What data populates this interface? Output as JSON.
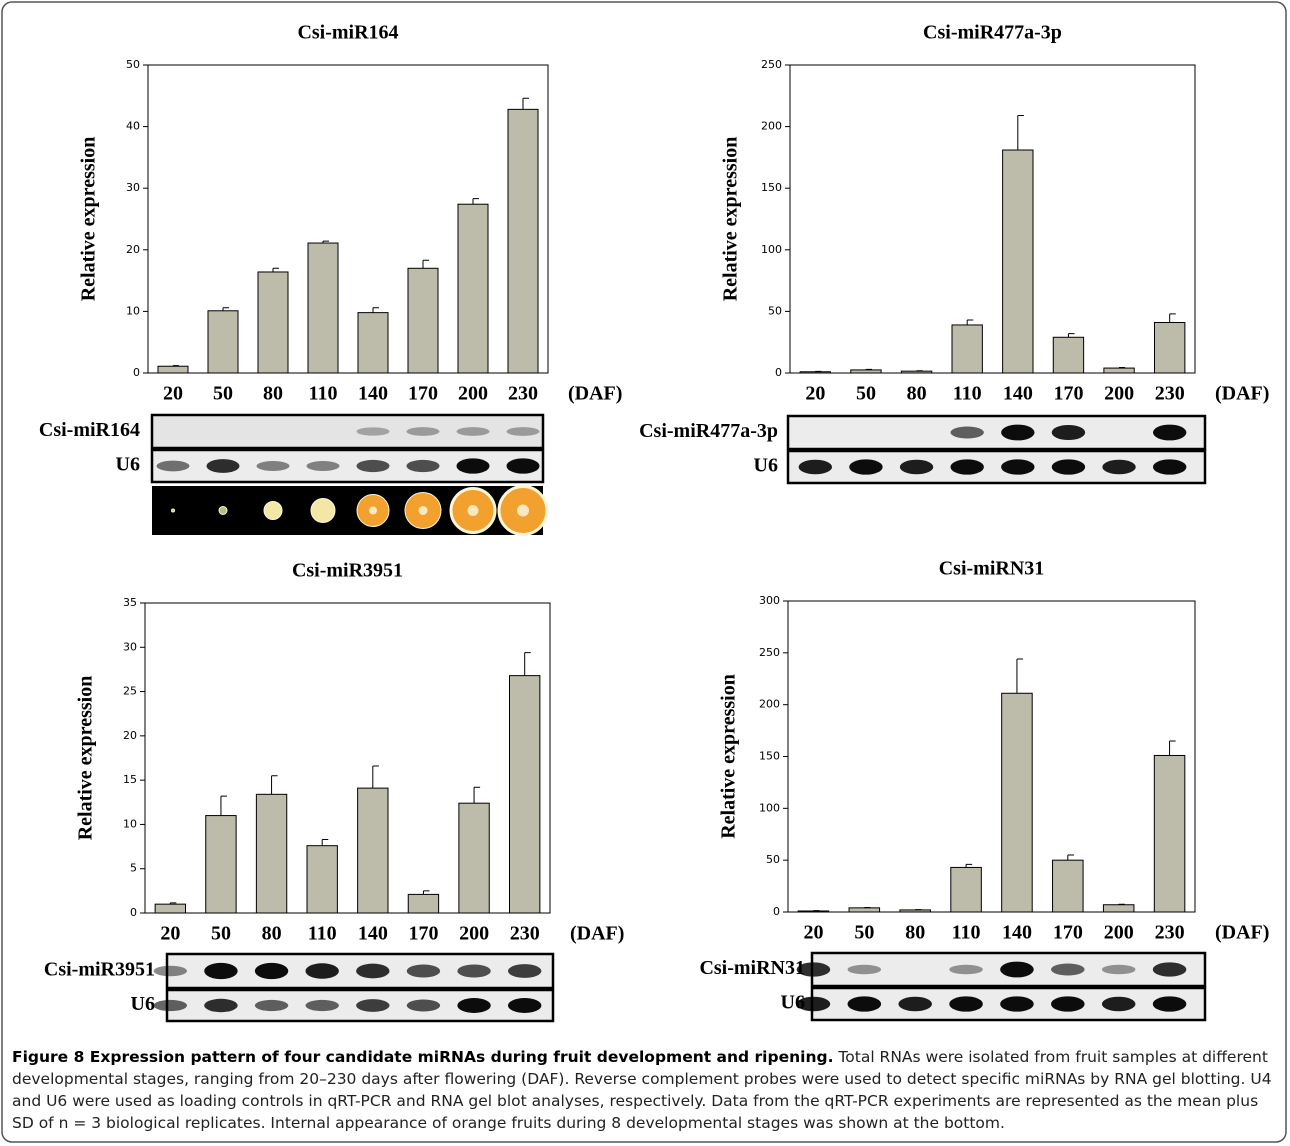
{
  "chart_data": [
    {
      "type": "bar",
      "title": "Csi-miR164",
      "ylabel": "Relative expression",
      "xlabel": "(DAF)",
      "categories": [
        "20",
        "50",
        "80",
        "110",
        "140",
        "170",
        "200",
        "230"
      ],
      "values": [
        1.1,
        10.1,
        16.4,
        21.1,
        9.8,
        17.0,
        27.4,
        42.8
      ],
      "errors": [
        0.1,
        0.5,
        0.6,
        0.3,
        0.8,
        1.3,
        0.9,
        1.8
      ],
      "ylim": [
        0,
        50
      ],
      "yticks": [
        0,
        10,
        20,
        30,
        40,
        50
      ],
      "color": "#bdbcab",
      "blot_labels": [
        "Csi-miR164",
        "U6"
      ]
    },
    {
      "type": "bar",
      "title": "Csi-miR477a-3p",
      "ylabel": "Relative expression",
      "xlabel": "(DAF)",
      "categories": [
        "20",
        "50",
        "80",
        "110",
        "140",
        "170",
        "200",
        "230"
      ],
      "values": [
        1,
        2.5,
        1.5,
        39,
        181,
        29,
        4,
        41
      ],
      "errors": [
        0.3,
        0.4,
        0.3,
        4,
        28,
        3,
        0.5,
        7
      ],
      "ylim": [
        0,
        250
      ],
      "yticks": [
        0,
        50,
        100,
        150,
        200,
        250
      ],
      "color": "#bdbcab",
      "blot_labels": [
        "Csi-miR477a-3p",
        "U6"
      ]
    },
    {
      "type": "bar",
      "title": "Csi-miR3951",
      "ylabel": "Relative expression",
      "xlabel": "(DAF)",
      "categories": [
        "20",
        "50",
        "80",
        "110",
        "140",
        "170",
        "200",
        "230"
      ],
      "values": [
        1.0,
        11.0,
        13.4,
        7.6,
        14.1,
        2.1,
        12.4,
        26.8
      ],
      "errors": [
        0.15,
        2.2,
        2.1,
        0.7,
        2.5,
        0.4,
        1.8,
        2.6
      ],
      "ylim": [
        0,
        35
      ],
      "yticks": [
        0,
        5,
        10,
        15,
        20,
        25,
        30,
        35
      ],
      "color": "#bdbcab",
      "blot_labels": [
        "Csi-miR3951",
        "U6"
      ]
    },
    {
      "type": "bar",
      "title": "Csi-miRN31",
      "ylabel": "Relative expression",
      "xlabel": "(DAF)",
      "categories": [
        "20",
        "50",
        "80",
        "110",
        "140",
        "170",
        "200",
        "230"
      ],
      "values": [
        1,
        4,
        2,
        43,
        211,
        50,
        7,
        151
      ],
      "errors": [
        0.3,
        0.4,
        0.3,
        3,
        33,
        5,
        0.5,
        14
      ],
      "ylim": [
        0,
        300
      ],
      "yticks": [
        0,
        50,
        100,
        150,
        200,
        250,
        300
      ],
      "color": "#bdbcab",
      "blot_labels": [
        "Csi-miRN31",
        "U6"
      ]
    }
  ],
  "caption": {
    "label": "Figure 8 Expression pattern of four candidate miRNAs during fruit development and ripening.",
    "text": "Total RNAs were isolated from fruit samples at different developmental stages, ranging from 20–230 days after flowering (DAF). Reverse complement probes were used to detect specific miRNAs by RNA gel blotting. U4 and U6 were used as loading controls in qRT-PCR and RNA gel blot analyses, respectively. Data from the qRT-PCR experiments are represented as the mean plus SD of n = 3 biological replicates. Internal appearance of orange fruits during 8 developmental stages was shown at the bottom."
  }
}
